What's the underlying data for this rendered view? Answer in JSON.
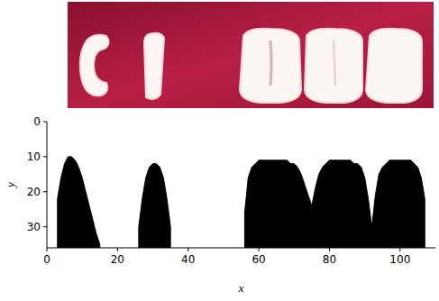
{
  "chart_data": {
    "type": "area",
    "x_label": "x",
    "y_label": "y",
    "x": [
      0,
      1,
      2,
      3,
      4,
      5,
      6,
      7,
      8,
      9,
      10,
      11,
      12,
      13,
      14,
      15,
      16,
      17,
      18,
      19,
      20,
      21,
      22,
      23,
      24,
      25,
      26,
      27,
      28,
      29,
      30,
      31,
      32,
      33,
      34,
      35,
      36,
      37,
      38,
      39,
      40,
      41,
      42,
      43,
      44,
      45,
      46,
      47,
      48,
      49,
      50,
      51,
      52,
      53,
      54,
      55,
      56,
      57,
      58,
      59,
      60,
      61,
      62,
      63,
      64,
      65,
      66,
      67,
      68,
      69,
      70,
      71,
      72,
      73,
      74,
      75,
      76,
      77,
      78,
      79,
      80,
      81,
      82,
      83,
      84,
      85,
      86,
      87,
      88,
      89,
      90,
      91,
      92,
      93,
      94,
      95,
      96,
      97,
      98,
      99,
      100,
      101,
      102,
      103,
      104,
      105,
      106,
      107,
      108
    ],
    "values": [
      null,
      null,
      null,
      22,
      16,
      12,
      10,
      10,
      11,
      13,
      16,
      20,
      24,
      28,
      32,
      35,
      null,
      null,
      null,
      null,
      null,
      null,
      null,
      null,
      null,
      null,
      30,
      22,
      16,
      13,
      12,
      12,
      13,
      16,
      22,
      30,
      null,
      null,
      null,
      null,
      null,
      null,
      null,
      null,
      null,
      null,
      null,
      null,
      null,
      null,
      null,
      null,
      null,
      null,
      null,
      null,
      26,
      16,
      13,
      12,
      11,
      11,
      11,
      11,
      11,
      11,
      11,
      11,
      11,
      12,
      12,
      13,
      15,
      18,
      21,
      24,
      19,
      15,
      13,
      12,
      11,
      11,
      11,
      11,
      11,
      11,
      11,
      12,
      12,
      13,
      16,
      22,
      30,
      21,
      15,
      13,
      12,
      11,
      11,
      11,
      11,
      11,
      11,
      11,
      12,
      13,
      16,
      22,
      null
    ],
    "color": "#000000",
    "xlim": [
      0,
      110
    ],
    "xticks": [
      0,
      20,
      40,
      60,
      80,
      100
    ],
    "ylim": [
      36,
      0
    ],
    "yticks": [
      0,
      10,
      20,
      30
    ]
  }
}
